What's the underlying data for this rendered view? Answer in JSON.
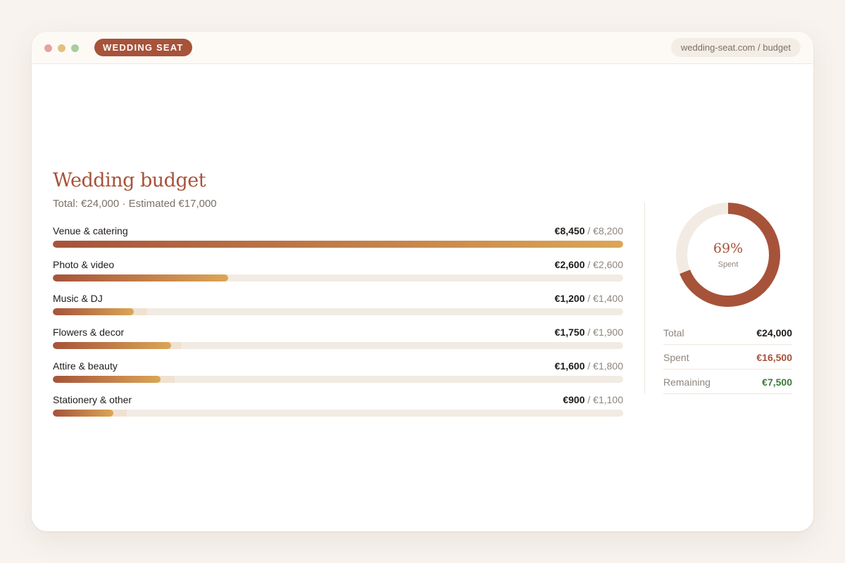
{
  "browser": {
    "brand": "WEDDING SEAT",
    "url": "wedding-seat.com / budget"
  },
  "page": {
    "title": "Wedding budget",
    "subtitle": "Total: €24,000 · Estimated €17,000"
  },
  "categories": [
    {
      "label": "Venue & catering",
      "spent": "€8,450",
      "estimated": "€8,200",
      "spent_value": 8450,
      "estimated_value": 8200
    },
    {
      "label": "Photo & video",
      "spent": "€2,600",
      "estimated": "€2,600",
      "spent_value": 2600,
      "estimated_value": 2600
    },
    {
      "label": "Music & DJ",
      "spent": "€1,200",
      "estimated": "€1,400",
      "spent_value": 1200,
      "estimated_value": 1400
    },
    {
      "label": "Flowers & decor",
      "spent": "€1,750",
      "estimated": "€1,900",
      "spent_value": 1750,
      "estimated_value": 1900
    },
    {
      "label": "Attire & beauty",
      "spent": "€1,600",
      "estimated": "€1,800",
      "spent_value": 1600,
      "estimated_value": 1800
    },
    {
      "label": "Stationery & other",
      "spent": "€900",
      "estimated": "€1,100",
      "spent_value": 900,
      "estimated_value": 1100
    }
  ],
  "donut": {
    "percent_label": "69%",
    "caption": "Spent",
    "fraction": 0.69
  },
  "summary": [
    {
      "label": "Total",
      "value": "€24,000"
    },
    {
      "label": "Spent",
      "value": "€16,500"
    },
    {
      "label": "Remaining",
      "value": "€7,500"
    }
  ],
  "colors": {
    "accent": "#a6533a",
    "gold": "#dba656",
    "remaining": "#3d7a3f",
    "track": "#f2ebe3"
  }
}
